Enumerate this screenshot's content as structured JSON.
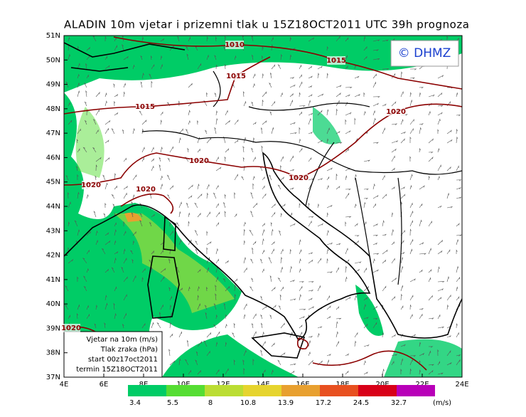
{
  "title": "ALADIN 10m vjetar i prizemni tlak u 15Z18OCT2011 UTC 39h prognoza",
  "logo": "© DHMZ",
  "lat_labels": [
    "51N",
    "50N",
    "49N",
    "48N",
    "47N",
    "46N",
    "45N",
    "44N",
    "43N",
    "42N",
    "41N",
    "40N",
    "39N",
    "38N",
    "37N"
  ],
  "lon_labels": [
    "4E",
    "6E",
    "8E",
    "10E",
    "12E",
    "14E",
    "16E",
    "18E",
    "20E",
    "22E",
    "24E"
  ],
  "isobar_labels": [
    "1010",
    "1015",
    "1015",
    "1015",
    "1020",
    "1020",
    "1020",
    "1020",
    "1020",
    "1020"
  ],
  "info_box": [
    "Vjetar na 10m (m/s)",
    "Tlak zraka (hPa)",
    "start 00z17oct2011",
    "termin 15Z18OCT2011"
  ],
  "colorbar": {
    "labels": [
      "3.4",
      "5.5",
      "8",
      "10.8",
      "13.9",
      "17.2",
      "24.5",
      "32.7"
    ],
    "colors": [
      "#00cc66",
      "#55dd33",
      "#bbdd33",
      "#e6d42e",
      "#e8a030",
      "#e85020",
      "#d80018",
      "#b800b8"
    ],
    "units": "(m/s)"
  }
}
